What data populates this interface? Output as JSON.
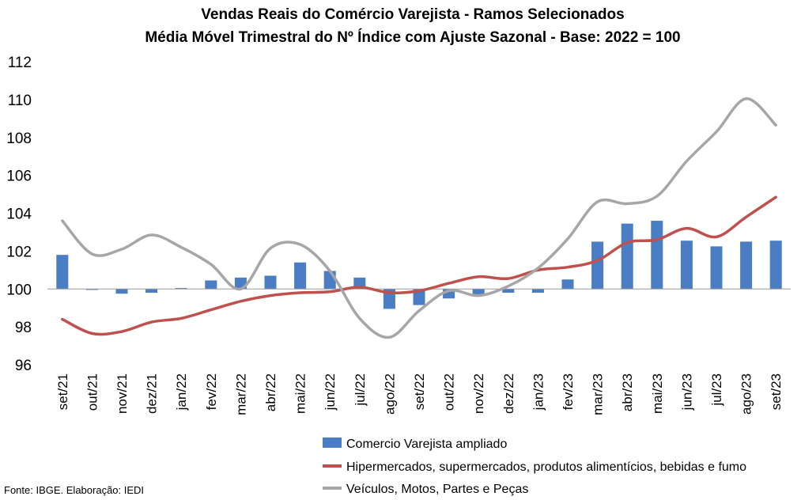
{
  "chart_data": {
    "type": "bar+line",
    "title": "Vendas Reais do Comércio Varejista - Ramos Selecionados",
    "subtitle": "Média Móvel Trimestral do Nº Índice com Ajuste Sazonal - Base: 2022 = 100",
    "categories": [
      "set/21",
      "out/21",
      "nov/21",
      "dez/21",
      "jan/22",
      "fev/22",
      "mar/22",
      "abr/22",
      "mai/22",
      "jun/22",
      "jul/22",
      "ago/22",
      "set/22",
      "out/22",
      "nov/22",
      "dez/22",
      "jan/23",
      "fev/23",
      "mar/23",
      "abr/23",
      "mai/23",
      "jun/23",
      "jul/23",
      "ago/23",
      "set/23"
    ],
    "ylim": [
      96,
      112
    ],
    "yticks": [
      96,
      98,
      100,
      102,
      104,
      106,
      108,
      110,
      112
    ],
    "bar_baseline": 100,
    "series": [
      {
        "name": "Comercio Varejista ampliado",
        "type": "bar",
        "color": "#4a7dc4",
        "values": [
          101.8,
          99.95,
          99.75,
          99.8,
          100.05,
          100.45,
          100.6,
          100.7,
          101.4,
          100.95,
          100.6,
          98.95,
          99.15,
          99.5,
          99.7,
          99.8,
          99.8,
          100.5,
          102.5,
          103.45,
          103.6,
          102.55,
          102.25,
          102.5,
          102.55
        ]
      },
      {
        "name": "Hipermercados, supermercados, produtos alimentícios, bebidas e fumo",
        "type": "line",
        "color": "#c0504d",
        "values": [
          98.4,
          97.65,
          97.75,
          98.25,
          98.45,
          98.9,
          99.35,
          99.65,
          99.8,
          99.85,
          100.1,
          99.8,
          99.9,
          100.3,
          100.65,
          100.55,
          101.0,
          101.15,
          101.5,
          102.45,
          102.6,
          103.2,
          102.75,
          103.8,
          104.85
        ]
      },
      {
        "name": "Veículos, Motos, Partes e Peças",
        "type": "line",
        "color": "#a6a6a6",
        "values": [
          103.6,
          101.85,
          102.1,
          102.85,
          102.2,
          101.3,
          100.0,
          102.15,
          102.35,
          100.95,
          98.45,
          97.45,
          98.85,
          99.9,
          99.65,
          100.15,
          101.1,
          102.65,
          104.6,
          104.5,
          104.9,
          106.75,
          108.3,
          110.05,
          108.65
        ]
      }
    ],
    "legend_position": "bottom",
    "grid": false
  },
  "source": "Fonte: IBGE. Elaboração: IEDI"
}
